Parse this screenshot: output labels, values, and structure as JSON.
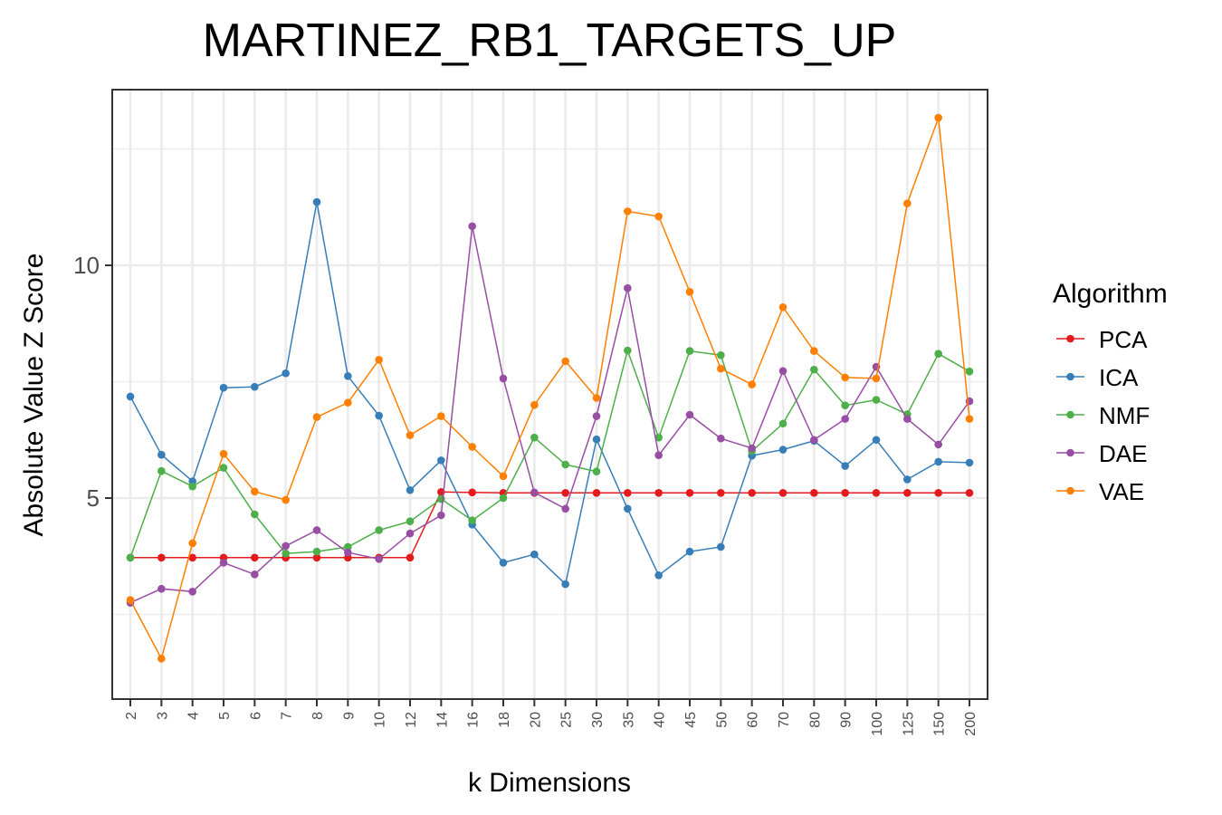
{
  "chart_data": {
    "type": "line",
    "title": "MARTINEZ_RB1_TARGETS_UP",
    "xlabel": "k Dimensions",
    "ylabel": "Absolute Value Z Score",
    "categories": [
      "2",
      "3",
      "4",
      "5",
      "6",
      "7",
      "8",
      "9",
      "10",
      "12",
      "14",
      "16",
      "18",
      "20",
      "25",
      "30",
      "35",
      "40",
      "45",
      "50",
      "60",
      "70",
      "80",
      "90",
      "100",
      "125",
      "150",
      "200"
    ],
    "y_ticks": [
      5,
      10
    ],
    "ylim": [
      0.5,
      13.8
    ],
    "grid": true,
    "legend": {
      "title": "Algorithm",
      "position": "right"
    },
    "series": [
      {
        "name": "PCA",
        "color": "#E41A1C",
        "values": [
          3.72,
          3.72,
          3.72,
          3.72,
          3.72,
          3.72,
          3.72,
          3.72,
          3.72,
          3.72,
          5.13,
          5.12,
          5.11,
          5.11,
          5.11,
          5.11,
          5.11,
          5.11,
          5.11,
          5.11,
          5.11,
          5.11,
          5.11,
          5.11,
          5.11,
          5.11,
          5.11,
          5.11
        ]
      },
      {
        "name": "ICA",
        "color": "#377EB8",
        "values": [
          7.18,
          5.93,
          5.36,
          7.37,
          7.39,
          7.68,
          11.36,
          7.62,
          6.77,
          5.17,
          5.81,
          4.43,
          3.61,
          3.79,
          3.15,
          6.26,
          4.77,
          3.34,
          3.85,
          3.95,
          5.91,
          6.04,
          6.23,
          5.69,
          6.25,
          5.4,
          5.78,
          5.76
        ]
      },
      {
        "name": "NMF",
        "color": "#4DAF4A",
        "values": [
          3.72,
          5.58,
          5.25,
          5.65,
          4.65,
          3.81,
          3.85,
          3.95,
          4.31,
          4.5,
          4.98,
          4.52,
          5.0,
          6.3,
          5.72,
          5.57,
          8.17,
          6.3,
          8.16,
          8.07,
          6.01,
          6.6,
          7.76,
          6.99,
          7.11,
          6.8,
          8.1,
          7.72
        ]
      },
      {
        "name": "DAE",
        "color": "#984EA3",
        "values": [
          2.75,
          3.05,
          2.99,
          3.61,
          3.36,
          3.97,
          4.31,
          3.83,
          3.69,
          4.24,
          4.63,
          10.84,
          7.57,
          5.12,
          4.77,
          6.76,
          9.51,
          5.92,
          6.79,
          6.28,
          6.07,
          7.73,
          6.25,
          6.7,
          7.82,
          6.7,
          6.15,
          7.08
        ]
      },
      {
        "name": "VAE",
        "color": "#FF7F00",
        "values": [
          2.81,
          1.55,
          4.03,
          5.95,
          5.14,
          4.96,
          6.74,
          7.05,
          7.97,
          6.35,
          6.76,
          6.1,
          5.47,
          7.0,
          7.94,
          7.15,
          11.16,
          11.05,
          9.43,
          7.78,
          7.44,
          9.1,
          8.16,
          7.59,
          7.57,
          11.33,
          13.17,
          6.7
        ]
      }
    ]
  }
}
